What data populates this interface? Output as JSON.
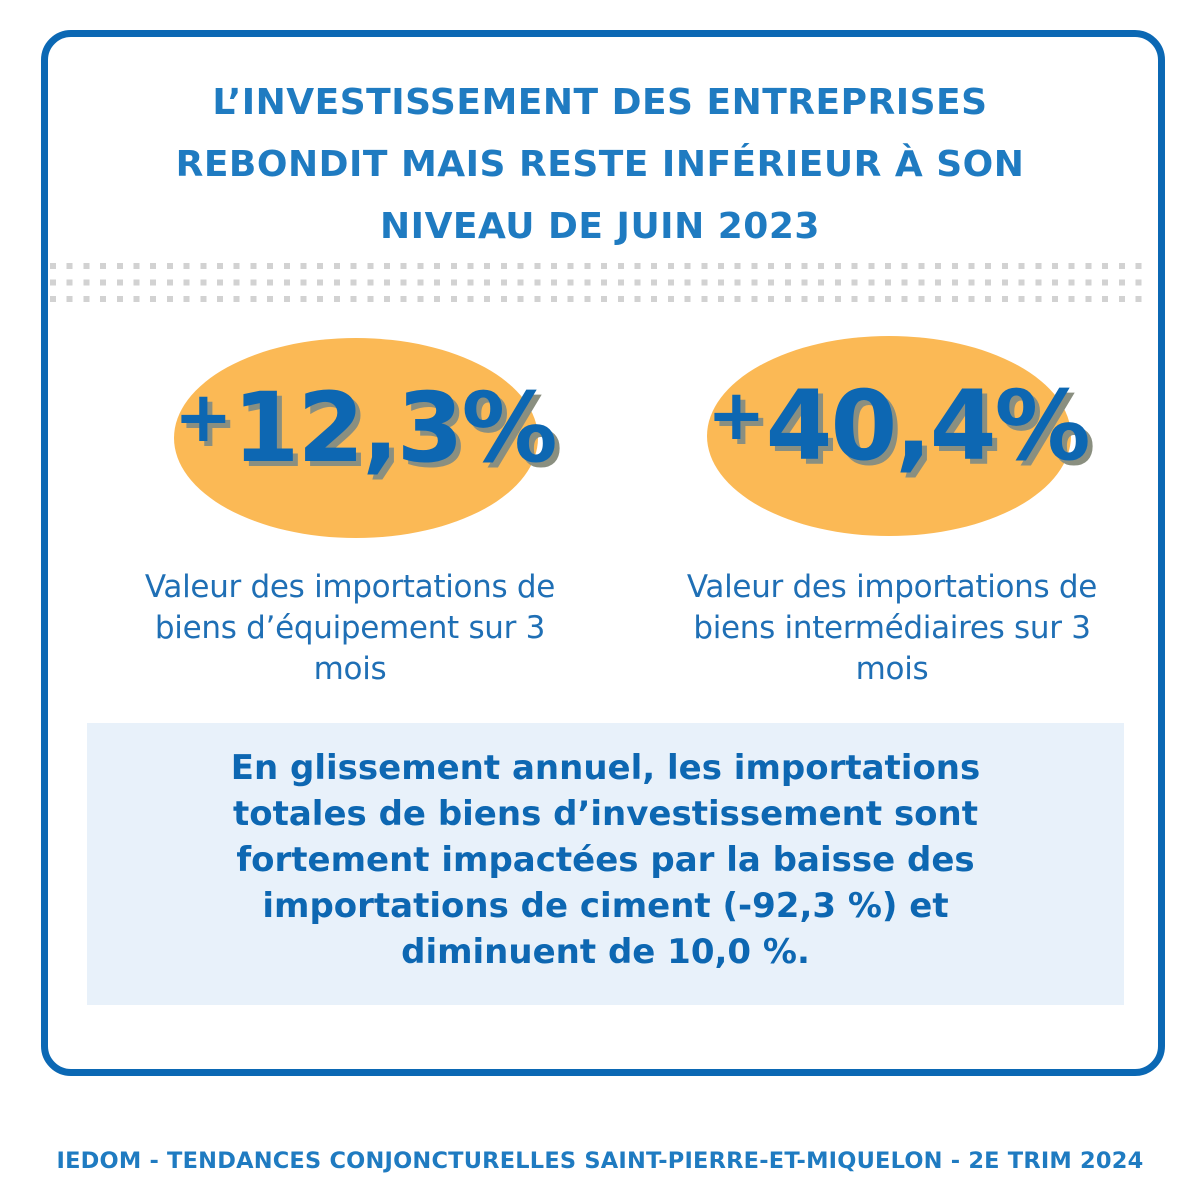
{
  "title": {
    "lines": [
      "L’INVESTISSEMENT DES ENTREPRISES",
      "REBONDIT MAIS RESTE INFÉRIEUR À SON",
      "NIVEAU DE JUIN 2023"
    ]
  },
  "stats": [
    {
      "sign": "+",
      "value": "12,3%",
      "caption_lines": [
        "Valeur des importations de",
        "biens d’équipement sur 3",
        "mois"
      ]
    },
    {
      "sign": "+",
      "value": "40,4%",
      "caption_lines": [
        "Valeur des importations de",
        "biens intermédiaires sur 3",
        "mois"
      ]
    }
  ],
  "summary": {
    "lines": [
      "En glissement annuel, les importations",
      "totales de biens d’investissement sont",
      "fortement impactées par la baisse des",
      "importations de ciment (-92,3 %) et",
      "diminuent de 10,0 %."
    ]
  },
  "footer": "IEDOM - TENDANCES CONJONCTURELLES SAINT-PIERRE-ET-MIQUELON - 2E TRIM 2024",
  "colors": {
    "primary_blue": "#0b68b4",
    "title_blue": "#1f7bc1",
    "oval_orange": "#fbb955",
    "box_background": "#e8f1fa"
  }
}
